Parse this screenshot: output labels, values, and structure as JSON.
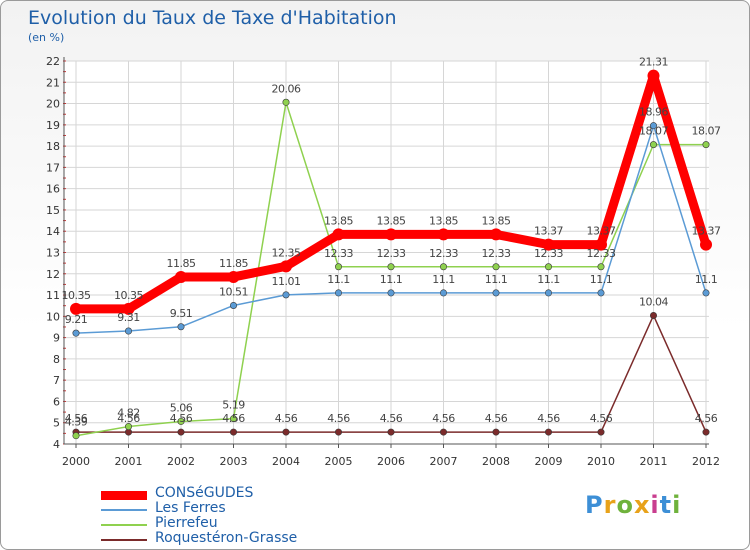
{
  "header": {
    "title": "Evolution du Taux de Taxe d'Habitation",
    "unit": "(en %)"
  },
  "brand": {
    "text": "Proxiti",
    "colors": [
      "#3d8fd6",
      "#e8a21a",
      "#6fb23c",
      "#e8a21a",
      "#c93e8f",
      "#3d8fd6",
      "#6fb23c"
    ]
  },
  "chart_data": {
    "type": "line",
    "title": "Evolution du Taux de Taxe d'Habitation",
    "ylabel": "(en %)",
    "xlabel": "",
    "categories": [
      "2000",
      "2001",
      "2002",
      "2003",
      "2004",
      "2005",
      "2006",
      "2007",
      "2008",
      "2009",
      "2010",
      "2011",
      "2012"
    ],
    "ylim": [
      4,
      22
    ],
    "yticks": [
      4,
      5,
      6,
      7,
      8,
      9,
      10,
      11,
      12,
      13,
      14,
      15,
      16,
      17,
      18,
      19,
      20,
      21,
      22
    ],
    "grid": true,
    "legend_position": "bottom-left",
    "series": [
      {
        "name": "CONSéGUDES",
        "color": "#ff0000",
        "values": [
          10.35,
          10.35,
          11.85,
          11.85,
          12.35,
          13.85,
          13.85,
          13.85,
          13.85,
          13.37,
          13.37,
          21.31,
          13.37
        ],
        "labels": [
          "10.35",
          "10.35",
          "11.85",
          "11.85",
          "12.35",
          "13.85",
          "13.85",
          "13.85",
          "13.85",
          "13.37",
          "13.37",
          "21.31",
          "13.37"
        ]
      },
      {
        "name": "Les Ferres",
        "color": "#5b9bd5",
        "values": [
          9.21,
          9.31,
          9.51,
          10.51,
          11.01,
          11.1,
          11.1,
          11.1,
          11.1,
          11.1,
          11.1,
          18.96,
          11.1
        ],
        "labels": [
          "9.21",
          "9.31",
          "9.51",
          "10.51",
          "11.01",
          "11.1",
          "11.1",
          "11.1",
          "11.1",
          "11.1",
          "11.1",
          "18.96",
          "11.1"
        ]
      },
      {
        "name": "Pierrefeu",
        "color": "#8fd14f",
        "values": [
          4.39,
          4.82,
          5.06,
          5.19,
          20.06,
          12.33,
          12.33,
          12.33,
          12.33,
          12.33,
          12.33,
          18.07,
          18.07
        ],
        "labels": [
          "4.39",
          "4.82",
          "5.06",
          "5.19",
          "20.06",
          "12.33",
          "12.33",
          "12.33",
          "12.33",
          "12.33",
          "12.33",
          "18.07",
          "18.07"
        ]
      },
      {
        "name": "Roquestéron-Grasse",
        "color": "#7b2b2b",
        "values": [
          4.56,
          4.56,
          4.56,
          4.56,
          4.56,
          4.56,
          4.56,
          4.56,
          4.56,
          4.56,
          4.56,
          10.04,
          4.56
        ],
        "labels": [
          "4.56",
          "4.56",
          "4.56",
          "4.56",
          "4.56",
          "4.56",
          "4.56",
          "4.56",
          "4.56",
          "4.56",
          "4.56",
          "10.04",
          "4.56"
        ]
      }
    ]
  }
}
